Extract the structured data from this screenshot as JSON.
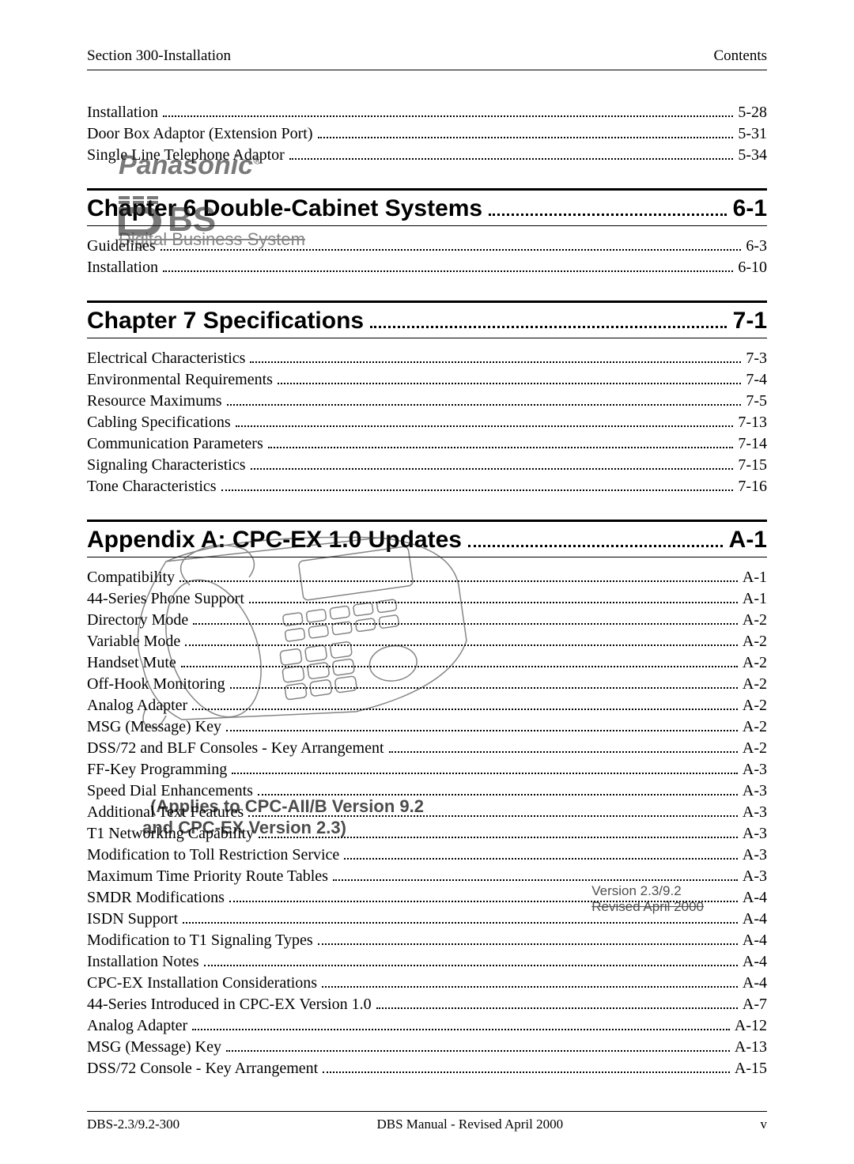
{
  "header": {
    "left": "Section 300-Installation",
    "right": "Contents"
  },
  "pre_items": [
    {
      "label": "Installation",
      "page": "5-28"
    },
    {
      "label": "Door Box Adaptor (Extension Port)",
      "page": "5-31"
    },
    {
      "label": "Single Line Telephone Adaptor",
      "page": "5-34"
    }
  ],
  "chapters": [
    {
      "title": "Chapter 6  Double-Cabinet Systems",
      "page": "6-1",
      "items": [
        {
          "label": "Guidelines",
          "page": "6-3"
        },
        {
          "label": "Installation",
          "page": "6-10"
        }
      ]
    },
    {
      "title": "Chapter 7  Specifications",
      "page": "7-1",
      "items": [
        {
          "label": "Electrical Characteristics",
          "page": "7-3"
        },
        {
          "label": "Environmental Requirements",
          "page": "7-4"
        },
        {
          "label": "Resource Maximums",
          "page": "7-5"
        },
        {
          "label": "Cabling Specifications",
          "page": "7-13"
        },
        {
          "label": "Communication Parameters",
          "page": "7-14"
        },
        {
          "label": "Signaling Characteristics",
          "page": "7-15"
        },
        {
          "label": "Tone Characteristics",
          "page": "7-16"
        }
      ]
    },
    {
      "title": "Appendix A: CPC-EX 1.0 Updates",
      "page": "A-1",
      "items": [
        {
          "label": "Compatibility",
          "page": "A-1"
        },
        {
          "label": "44-Series Phone Support",
          "page": "A-1"
        },
        {
          "label": "Directory Mode",
          "page": "A-2"
        },
        {
          "label": "Variable Mode",
          "page": "A-2"
        },
        {
          "label": "Handset Mute",
          "page": "A-2"
        },
        {
          "label": "Off-Hook Monitoring",
          "page": "A-2"
        },
        {
          "label": "Analog Adapter",
          "page": "A-2"
        },
        {
          "label": "MSG (Message) Key",
          "page": "A-2"
        },
        {
          "label": "DSS/72 and BLF Consoles - Key Arrangement",
          "page": "A-2"
        },
        {
          "label": "FF-Key Programming",
          "page": "A-3"
        },
        {
          "label": "Speed Dial Enhancements",
          "page": "A-3"
        },
        {
          "label": "Additional Text Features",
          "page": "A-3"
        },
        {
          "label": "T1 Networking Capability",
          "page": "A-3"
        },
        {
          "label": "Modification to Toll Restriction Service",
          "page": "A-3"
        },
        {
          "label": "Maximum Time Priority Route Tables",
          "page": "A-3"
        },
        {
          "label": "SMDR Modifications",
          "page": "A-4"
        },
        {
          "label": "ISDN Support",
          "page": "A-4"
        },
        {
          "label": "Modification to T1 Signaling Types",
          "page": "A-4"
        },
        {
          "label": "Installation Notes",
          "page": "A-4"
        },
        {
          "label": "CPC-EX Installation Considerations",
          "page": "A-4"
        },
        {
          "label": "44-Series Introduced in CPC-EX Version 1.0",
          "page": "A-7"
        },
        {
          "label": "Analog Adapter",
          "page": "A-12"
        },
        {
          "label": "MSG (Message) Key",
          "page": "A-13"
        },
        {
          "label": "DSS/72 Console - Key Arrangement",
          "page": "A-15"
        }
      ]
    }
  ],
  "watermarks": {
    "brand": "Panasonic",
    "reg": "®",
    "dbs_caption": "Digital Business System",
    "applies": "(Applies to CPC-AII/B Version 9.2",
    "and_ex": "and CPC-EX Version 2.3)",
    "version_line1": "Version 2.3/9.2",
    "version_line2": "Revised April 2000"
  },
  "footer": {
    "left": "DBS-2.3/9.2-300",
    "center": "DBS Manual - Revised April 2000",
    "right": "v"
  }
}
